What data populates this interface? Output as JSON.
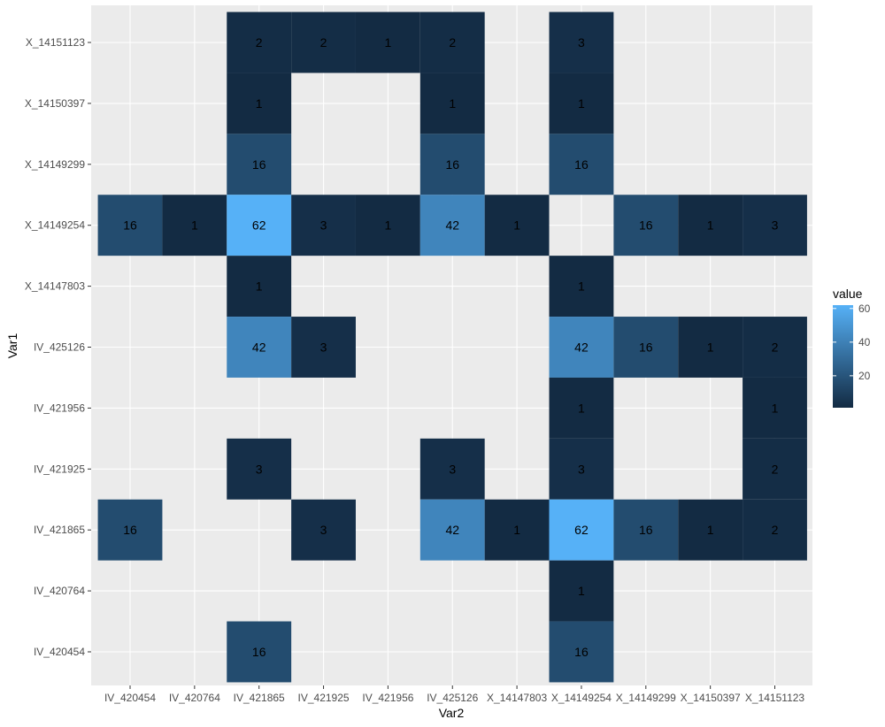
{
  "chart_data": {
    "type": "heatmap",
    "xlabel": "Var2",
    "ylabel": "Var1",
    "x_categories": [
      "IV_420454",
      "IV_420764",
      "IV_421865",
      "IV_421925",
      "IV_421956",
      "IV_425126",
      "X_14147803",
      "X_14149254",
      "X_14149299",
      "X_14150397",
      "X_14151123"
    ],
    "y_categories": [
      "IV_420454",
      "IV_420764",
      "IV_421865",
      "IV_421925",
      "IV_421956",
      "IV_425126",
      "X_14147803",
      "X_14149254",
      "X_14149299",
      "X_14150397",
      "X_14151123"
    ],
    "cells": [
      {
        "x": "IV_421865",
        "y": "X_14151123",
        "value": 2
      },
      {
        "x": "IV_421925",
        "y": "X_14151123",
        "value": 2
      },
      {
        "x": "IV_421956",
        "y": "X_14151123",
        "value": 1
      },
      {
        "x": "IV_425126",
        "y": "X_14151123",
        "value": 2
      },
      {
        "x": "X_14149254",
        "y": "X_14151123",
        "value": 3
      },
      {
        "x": "IV_421865",
        "y": "X_14150397",
        "value": 1
      },
      {
        "x": "IV_425126",
        "y": "X_14150397",
        "value": 1
      },
      {
        "x": "X_14149254",
        "y": "X_14150397",
        "value": 1
      },
      {
        "x": "IV_421865",
        "y": "X_14149299",
        "value": 16
      },
      {
        "x": "IV_425126",
        "y": "X_14149299",
        "value": 16
      },
      {
        "x": "X_14149254",
        "y": "X_14149299",
        "value": 16
      },
      {
        "x": "IV_420454",
        "y": "X_14149254",
        "value": 16
      },
      {
        "x": "IV_420764",
        "y": "X_14149254",
        "value": 1
      },
      {
        "x": "IV_421865",
        "y": "X_14149254",
        "value": 62
      },
      {
        "x": "IV_421925",
        "y": "X_14149254",
        "value": 3
      },
      {
        "x": "IV_421956",
        "y": "X_14149254",
        "value": 1
      },
      {
        "x": "IV_425126",
        "y": "X_14149254",
        "value": 42
      },
      {
        "x": "X_14147803",
        "y": "X_14149254",
        "value": 1
      },
      {
        "x": "X_14149299",
        "y": "X_14149254",
        "value": 16
      },
      {
        "x": "X_14150397",
        "y": "X_14149254",
        "value": 1
      },
      {
        "x": "X_14151123",
        "y": "X_14149254",
        "value": 3
      },
      {
        "x": "IV_421865",
        "y": "X_14147803",
        "value": 1
      },
      {
        "x": "X_14149254",
        "y": "X_14147803",
        "value": 1
      },
      {
        "x": "IV_421865",
        "y": "IV_425126",
        "value": 42
      },
      {
        "x": "IV_421925",
        "y": "IV_425126",
        "value": 3
      },
      {
        "x": "X_14149254",
        "y": "IV_425126",
        "value": 42
      },
      {
        "x": "X_14149299",
        "y": "IV_425126",
        "value": 16
      },
      {
        "x": "X_14150397",
        "y": "IV_425126",
        "value": 1
      },
      {
        "x": "X_14151123",
        "y": "IV_425126",
        "value": 2
      },
      {
        "x": "X_14149254",
        "y": "IV_421956",
        "value": 1
      },
      {
        "x": "X_14151123",
        "y": "IV_421956",
        "value": 1
      },
      {
        "x": "IV_421865",
        "y": "IV_421925",
        "value": 3
      },
      {
        "x": "IV_425126",
        "y": "IV_421925",
        "value": 3
      },
      {
        "x": "X_14149254",
        "y": "IV_421925",
        "value": 3
      },
      {
        "x": "X_14151123",
        "y": "IV_421925",
        "value": 2
      },
      {
        "x": "IV_420454",
        "y": "IV_421865",
        "value": 16
      },
      {
        "x": "IV_421925",
        "y": "IV_421865",
        "value": 3
      },
      {
        "x": "IV_425126",
        "y": "IV_421865",
        "value": 42
      },
      {
        "x": "X_14147803",
        "y": "IV_421865",
        "value": 1
      },
      {
        "x": "X_14149254",
        "y": "IV_421865",
        "value": 62
      },
      {
        "x": "X_14149299",
        "y": "IV_421865",
        "value": 16
      },
      {
        "x": "X_14150397",
        "y": "IV_421865",
        "value": 1
      },
      {
        "x": "X_14151123",
        "y": "IV_421865",
        "value": 2
      },
      {
        "x": "X_14149254",
        "y": "IV_420764",
        "value": 1
      },
      {
        "x": "IV_421865",
        "y": "IV_420454",
        "value": 16
      },
      {
        "x": "X_14149254",
        "y": "IV_420454",
        "value": 16
      }
    ],
    "legend": {
      "title": "value",
      "ticks": [
        20,
        40,
        60
      ],
      "range": [
        1,
        62
      ],
      "low_color": "#132B43",
      "high_color": "#56B1F7",
      "placement": "right"
    },
    "panel_background": "#EBEBEB",
    "grid_color": "#FFFFFF",
    "grid": true
  }
}
